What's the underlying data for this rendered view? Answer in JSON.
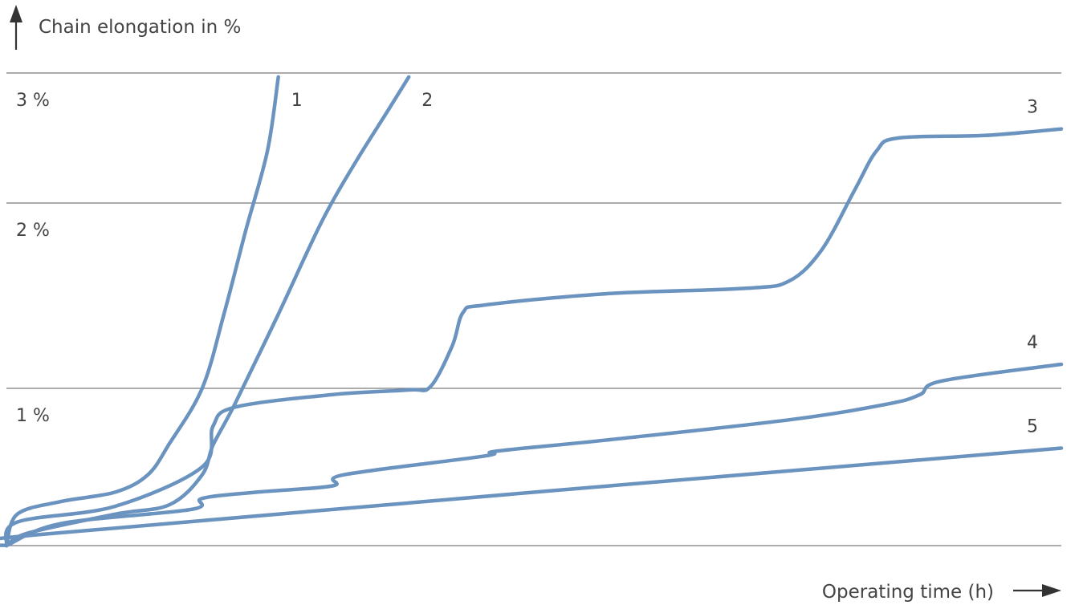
{
  "chart_data": {
    "type": "line",
    "title": "",
    "ylabel": "Chain elongation in %",
    "xlabel": "Operating time (h)",
    "ylim": [
      0,
      3
    ],
    "y_ticks": [
      {
        "value": 1,
        "label": "1 %"
      },
      {
        "value": 2,
        "label": "2 %"
      },
      {
        "value": 3,
        "label": "3 %"
      }
    ],
    "grid": true,
    "x_axis_numbers_shown": false,
    "series": [
      {
        "label": "1",
        "points": [
          [
            0,
            0
          ],
          [
            1,
            0.2
          ],
          [
            5,
            0.28
          ],
          [
            10,
            0.34
          ],
          [
            13,
            0.45
          ],
          [
            15,
            0.65
          ],
          [
            18,
            1.0
          ],
          [
            20,
            1.4
          ],
          [
            22,
            1.85
          ],
          [
            24,
            2.4
          ],
          [
            25,
            2.97
          ]
        ]
      },
      {
        "label": "2",
        "points": [
          [
            0,
            0
          ],
          [
            2,
            0.08
          ],
          [
            10,
            0.2
          ],
          [
            15,
            0.26
          ],
          [
            18,
            0.45
          ],
          [
            19,
            0.64
          ],
          [
            21,
            0.9
          ],
          [
            25,
            1.4
          ],
          [
            29,
            1.9
          ],
          [
            32,
            2.3
          ],
          [
            35,
            2.7
          ],
          [
            37,
            2.97
          ]
        ]
      },
      {
        "label": "3",
        "points": [
          [
            0,
            0
          ],
          [
            1,
            0.15
          ],
          [
            10,
            0.25
          ],
          [
            18,
            0.5
          ],
          [
            19,
            0.76
          ],
          [
            21,
            0.88
          ],
          [
            30,
            0.96
          ],
          [
            37,
            0.99
          ],
          [
            39,
            1.01
          ],
          [
            41,
            1.23
          ],
          [
            42,
            1.41
          ],
          [
            44,
            1.45
          ],
          [
            55,
            1.51
          ],
          [
            68,
            1.54
          ],
          [
            72,
            1.58
          ],
          [
            75,
            1.75
          ],
          [
            78,
            2.1
          ],
          [
            80,
            2.4
          ],
          [
            82,
            2.5
          ],
          [
            90,
            2.52
          ],
          [
            97,
            2.57
          ]
        ]
      },
      {
        "label": "4",
        "points": [
          [
            0,
            0
          ],
          [
            5,
            0.14
          ],
          [
            17,
            0.23
          ],
          [
            18,
            0.3
          ],
          [
            23,
            0.34
          ],
          [
            30,
            0.38
          ],
          [
            31,
            0.45
          ],
          [
            44,
            0.57
          ],
          [
            45,
            0.6
          ],
          [
            55,
            0.67
          ],
          [
            72,
            0.8
          ],
          [
            81,
            0.9
          ],
          [
            84,
            0.96
          ],
          [
            86,
            1.04
          ],
          [
            97,
            1.13
          ]
        ]
      },
      {
        "label": "5",
        "points": [
          [
            0,
            0
          ],
          [
            3,
            0.07
          ],
          [
            97,
            0.62
          ]
        ]
      }
    ],
    "color": "#6b93bf"
  }
}
